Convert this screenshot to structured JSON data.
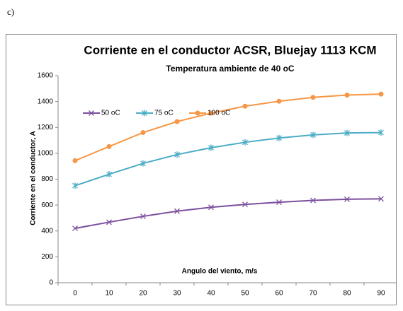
{
  "panel_label": "c)",
  "chart_data": {
    "type": "line",
    "title": "Corriente en el conductor ACSR, Bluejay 1113 KCM",
    "subtitle": "Temperatura ambiente de 40 oC",
    "x_label": "Angulo del viento, m/s",
    "y_label": "Corriente en el conductor, A",
    "categories": [
      "0",
      "10",
      "20",
      "30",
      "40",
      "50",
      "60",
      "70",
      "80",
      "90"
    ],
    "series": [
      {
        "name": "50 oC",
        "color": "#7b4f9d",
        "marker": "x",
        "values": [
          420,
          468,
          513,
          553,
          583,
          605,
          622,
          636,
          645,
          648
        ]
      },
      {
        "name": "75 oC",
        "color": "#4bacc6",
        "marker": "star",
        "values": [
          750,
          838,
          922,
          990,
          1043,
          1085,
          1118,
          1142,
          1157,
          1160
        ]
      },
      {
        "name": "100 oC",
        "color": "#f79646",
        "marker": "circle",
        "values": [
          943,
          1052,
          1160,
          1245,
          1310,
          1364,
          1402,
          1432,
          1450,
          1457
        ]
      }
    ],
    "ylim": [
      0,
      1600
    ],
    "yticks": [
      0,
      200,
      400,
      600,
      800,
      1000,
      1200,
      1400,
      1600
    ],
    "grid": false,
    "legend": "top-left"
  }
}
